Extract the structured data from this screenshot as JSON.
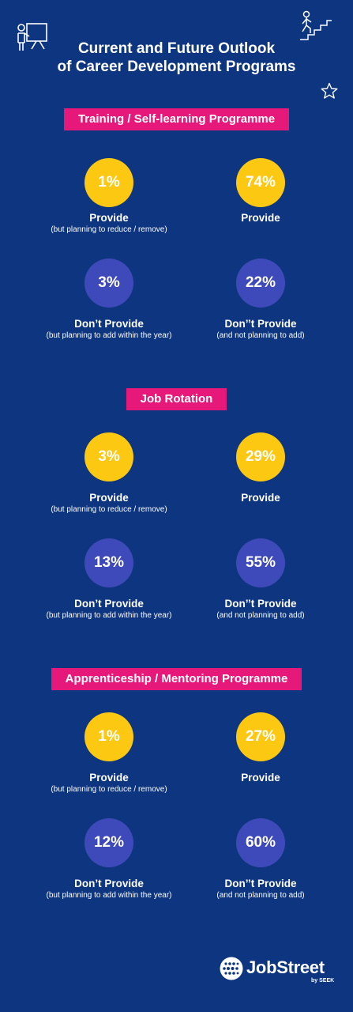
{
  "title": {
    "line1": "Current and Future Outlook",
    "line2": "of Career Development Programs"
  },
  "icons": {
    "top_left": "presenter-board-icon",
    "top_right": "climbing-stairs-icon",
    "star": "star-outline-icon"
  },
  "colors": {
    "background": "#0d3580",
    "banner": "#e6187a",
    "yellow": "#fdc811",
    "purple": "#3f4aba"
  },
  "sections": [
    {
      "title": "Training / Self-learning Programme",
      "items": [
        {
          "value": "1%",
          "label": "Provide",
          "sub": "(but planning to reduce / remove)"
        },
        {
          "value": "74%",
          "label": "Provide",
          "sub": ""
        },
        {
          "value": "3%",
          "label": "Don’t Provide",
          "sub": "(but planning to add within the year)"
        },
        {
          "value": "22%",
          "label": "Don’’t Provide",
          "sub": "(and not planning to add)"
        }
      ]
    },
    {
      "title": "Job Rotation",
      "items": [
        {
          "value": "3%",
          "label": "Provide",
          "sub": "(but planning to reduce / remove)"
        },
        {
          "value": "29%",
          "label": "Provide",
          "sub": ""
        },
        {
          "value": "13%",
          "label": "Don’t Provide",
          "sub": "(but planning to add within the year)"
        },
        {
          "value": "55%",
          "label": "Don’’t Provide",
          "sub": "(and not planning to add)"
        }
      ]
    },
    {
      "title": "Apprenticeship / Mentoring Programme",
      "items": [
        {
          "value": "1%",
          "label": "Provide",
          "sub": "(but planning to reduce / remove)"
        },
        {
          "value": "27%",
          "label": "Provide",
          "sub": ""
        },
        {
          "value": "12%",
          "label": "Don’t Provide",
          "sub": "(but planning to add within the year)"
        },
        {
          "value": "60%",
          "label": "Don’’t Provide",
          "sub": "(and not planning to add)"
        }
      ]
    }
  ],
  "logo": {
    "name": "JobStreet",
    "sub": "by SEEK"
  }
}
